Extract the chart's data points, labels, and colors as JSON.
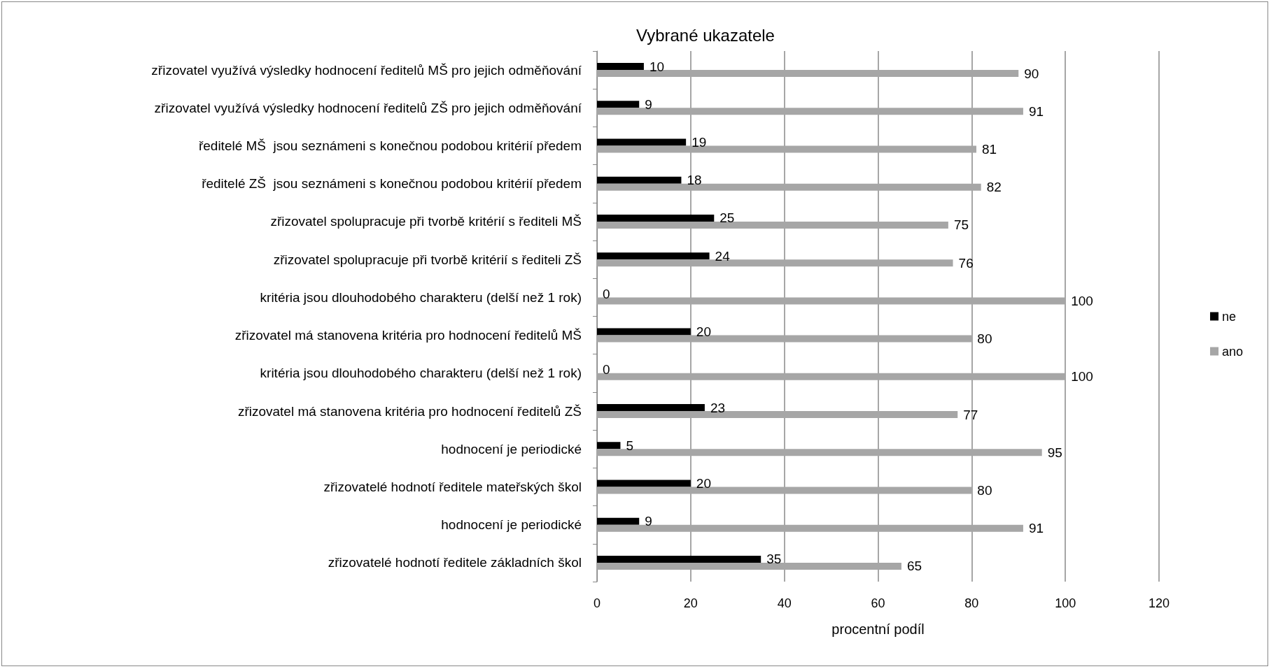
{
  "chart_data": {
    "type": "bar",
    "orientation": "horizontal",
    "title": "Vybrané ukazatele",
    "xlabel": "procentní podíl",
    "categories": [
      "zřizovatel využívá výsledky hodnocení ředitelů MŠ pro jejich odměňování",
      "zřizovatel využívá výsledky hodnocení ředitelů ZŠ pro jejich odměňování",
      "ředitelé MŠ  jsou seznámeni s konečnou podobou kritérií předem",
      "ředitelé ZŠ  jsou seznámeni s konečnou podobou kritérií předem",
      "zřizovatel spolupracuje při tvorbě kritérií s řediteli MŠ",
      "zřizovatel spolupracuje při tvorbě kritérií s řediteli ZŠ",
      "kritéria jsou dlouhodobého charakteru (delší než 1 rok)",
      "zřizovatel má stanovena kritéria pro hodnocení ředitelů MŠ",
      "kritéria jsou dlouhodobého charakteru (delší než 1 rok)",
      "zřizovatel má stanovena kritéria pro hodnocení ředitelů ZŠ",
      "hodnocení je periodické",
      "zřizovatelé hodnotí ředitele mateřských škol",
      "hodnocení je periodické",
      "zřizovatelé hodnotí ředitele základních škol"
    ],
    "series": [
      {
        "name": "ne",
        "color": "#000000",
        "values": [
          10,
          9,
          19,
          18,
          25,
          24,
          0,
          20,
          0,
          23,
          5,
          20,
          9,
          35
        ]
      },
      {
        "name": "ano",
        "color": "#a6a6a6",
        "values": [
          90,
          91,
          81,
          82,
          75,
          76,
          100,
          80,
          100,
          77,
          95,
          80,
          91,
          65
        ]
      }
    ],
    "xlim": [
      0,
      120
    ],
    "xticks": [
      0,
      20,
      40,
      60,
      80,
      100,
      120
    ],
    "grid": "x",
    "legend": "right",
    "data_labels": true
  }
}
